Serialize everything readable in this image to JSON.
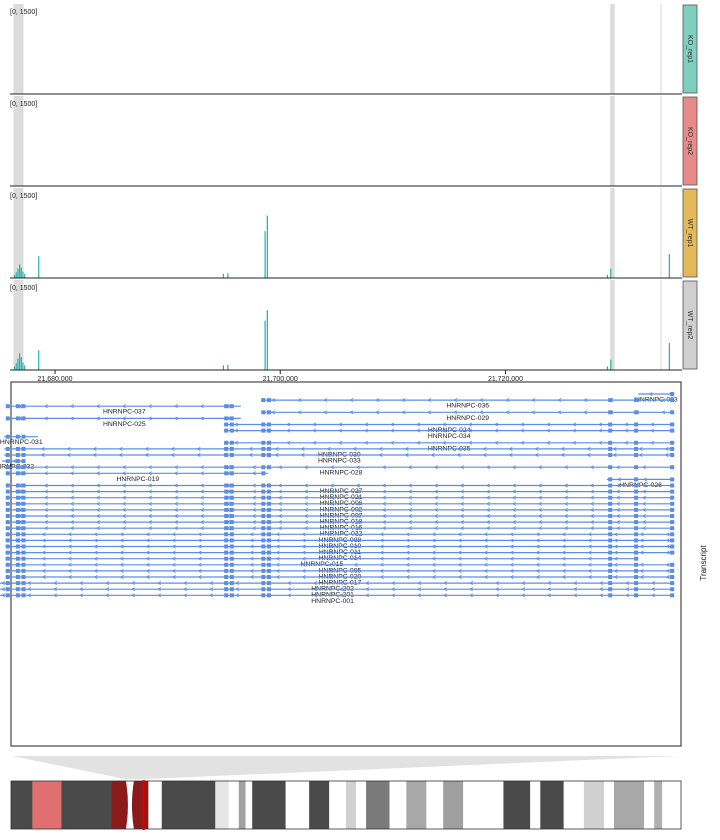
{
  "colors": {
    "coverage": "#1fb3b3",
    "highlight": "#dcdcdc",
    "transcript": "#5b8de6",
    "cytoband_dark": "#444444",
    "centromere": "#8b1a1a",
    "selected_band": "#e07070",
    "region_marker": "#dd0000"
  },
  "chart_data": {
    "type": "genome_browser_tracks",
    "x_axis": {
      "ticks": [
        "21,680,000",
        "21,700,000",
        "21,720,000"
      ],
      "tick_values": [
        21680000,
        21700000,
        21720000
      ],
      "range": [
        21676000,
        21735500
      ]
    },
    "highlight_regions": [
      [
        21676300,
        21677200
      ],
      [
        21729300,
        21729700
      ]
    ],
    "coverage_tracks": [
      {
        "label": "KO_rep1",
        "range_label": "[0, 1500]",
        "color": "#7fcfbf",
        "bars": []
      },
      {
        "label": "KO_rep2",
        "range_label": "[0, 1500]",
        "color": "#e88a8a",
        "bars": []
      },
      {
        "label": "WT_rep1",
        "range_label": "[0, 1500]",
        "color": "#e3b95a",
        "bars": [
          [
            21676350,
            60
          ],
          [
            21676500,
            110
          ],
          [
            21676650,
            180
          ],
          [
            21676800,
            260
          ],
          [
            21676950,
            200
          ],
          [
            21677100,
            120
          ],
          [
            21677250,
            80
          ],
          [
            21678500,
            420
          ],
          [
            21694900,
            80
          ],
          [
            21695300,
            90
          ],
          [
            21698600,
            900
          ],
          [
            21698800,
            1200
          ],
          [
            21729000,
            60
          ],
          [
            21729300,
            180
          ],
          [
            21734500,
            460
          ]
        ]
      },
      {
        "label": "WT_rep2",
        "range_label": "[0, 1500]",
        "color": "#cfcfcf",
        "bars": [
          [
            21676350,
            70
          ],
          [
            21676500,
            130
          ],
          [
            21676650,
            220
          ],
          [
            21676800,
            320
          ],
          [
            21676950,
            250
          ],
          [
            21677100,
            140
          ],
          [
            21677250,
            90
          ],
          [
            21678500,
            380
          ],
          [
            21694900,
            90
          ],
          [
            21695300,
            100
          ],
          [
            21698600,
            950
          ],
          [
            21698800,
            1150
          ],
          [
            21729000,
            70
          ],
          [
            21729300,
            200
          ],
          [
            21734500,
            520
          ]
        ]
      }
    ],
    "transcripts_track": {
      "title": "Transcript",
      "transcripts": [
        {
          "name": "HNRNPC-023",
          "start": 21731800,
          "end": 21735000
        },
        {
          "name": "HNRNPC-036",
          "start": 21698300,
          "end": 21735000
        },
        {
          "name": "HNRNPC-037",
          "start": 21675800,
          "end": 21696500
        },
        {
          "name": "HNRNPC-029",
          "start": 21698300,
          "end": 21735000
        },
        {
          "name": "HNRNPC-025",
          "start": 21675800,
          "end": 21696500
        },
        {
          "name": "HNRNPC-024",
          "start": 21695000,
          "end": 21735000
        },
        {
          "name": "HNRNPC-034",
          "start": 21695000,
          "end": 21735000
        },
        {
          "name": "HNRNPC-031",
          "start": 21675500,
          "end": 21678500
        },
        {
          "name": "HNRNPC-035",
          "start": 21695000,
          "end": 21735000
        },
        {
          "name": "HNRNPC-030",
          "start": 21675500,
          "end": 21735000
        },
        {
          "name": "HNRNPC-033",
          "start": 21675500,
          "end": 21735000
        },
        {
          "name": "HNRNPC-032",
          "start": 21675300,
          "end": 21677200
        },
        {
          "name": "HNRNPC-028",
          "start": 21675800,
          "end": 21735000
        },
        {
          "name": "HNRNPC-019",
          "start": 21675800,
          "end": 21698900
        },
        {
          "name": "HNRNPC-026",
          "start": 21729000,
          "end": 21735000
        },
        {
          "name": "HNRNPC-027",
          "start": 21675800,
          "end": 21735000
        },
        {
          "name": "HNRNPC-021",
          "start": 21675800,
          "end": 21735000
        },
        {
          "name": "HNRNPC-006",
          "start": 21675800,
          "end": 21735000
        },
        {
          "name": "HNRNPC-002",
          "start": 21675800,
          "end": 21735000
        },
        {
          "name": "HNRNPC-007",
          "start": 21675800,
          "end": 21735000
        },
        {
          "name": "HNRNPC-018",
          "start": 21675800,
          "end": 21735000
        },
        {
          "name": "HNRNPC-016",
          "start": 21675800,
          "end": 21735000
        },
        {
          "name": "HNRNPC-022",
          "start": 21675800,
          "end": 21735000
        },
        {
          "name": "HNRNPC-008",
          "start": 21675600,
          "end": 21735000
        },
        {
          "name": "HNRNPC-010",
          "start": 21675600,
          "end": 21735000
        },
        {
          "name": "HNRNPC-011",
          "start": 21675600,
          "end": 21735000
        },
        {
          "name": "HNRNPC-014",
          "start": 21675600,
          "end": 21735000
        },
        {
          "name": "HNRNPC-015",
          "start": 21675600,
          "end": 21731800
        },
        {
          "name": "HNRNPC-005",
          "start": 21675600,
          "end": 21735000
        },
        {
          "name": "HNRNPC-020",
          "start": 21675600,
          "end": 21735000
        },
        {
          "name": "HNRNPC-017",
          "start": 21675600,
          "end": 21735000
        },
        {
          "name": "HNRNPC-202",
          "start": 21674300,
          "end": 21735000
        },
        {
          "name": "HNRNPC-201",
          "start": 21674300,
          "end": 21735000
        },
        {
          "name": "HNRNPC-001",
          "start": 21674300,
          "end": 21735000
        }
      ]
    },
    "ideogram": {
      "bands": [
        {
          "color": "#4a4a4a",
          "from": 0.0,
          "to": 0.032
        },
        {
          "color": "#e07070",
          "from": 0.032,
          "to": 0.075
        },
        {
          "color": "#4a4a4a",
          "from": 0.075,
          "to": 0.15
        },
        {
          "color": "#ffffff",
          "from": 0.205,
          "to": 0.225
        },
        {
          "color": "#4a4a4a",
          "from": 0.225,
          "to": 0.305
        },
        {
          "color": "#e6e6e6",
          "from": 0.305,
          "to": 0.325
        },
        {
          "color": "#ffffff",
          "from": 0.325,
          "to": 0.34
        },
        {
          "color": "#a0a0a0",
          "from": 0.34,
          "to": 0.35
        },
        {
          "color": "#ffffff",
          "from": 0.35,
          "to": 0.36
        },
        {
          "color": "#4a4a4a",
          "from": 0.36,
          "to": 0.41
        },
        {
          "color": "#ffffff",
          "from": 0.41,
          "to": 0.445
        },
        {
          "color": "#4a4a4a",
          "from": 0.445,
          "to": 0.475
        },
        {
          "color": "#ffffff",
          "from": 0.475,
          "to": 0.5
        },
        {
          "color": "#d0d0d0",
          "from": 0.5,
          "to": 0.515
        },
        {
          "color": "#ffffff",
          "from": 0.515,
          "to": 0.53
        },
        {
          "color": "#7a7a7a",
          "from": 0.53,
          "to": 0.565
        },
        {
          "color": "#ffffff",
          "from": 0.565,
          "to": 0.59
        },
        {
          "color": "#a8a8a8",
          "from": 0.59,
          "to": 0.62
        },
        {
          "color": "#ffffff",
          "from": 0.62,
          "to": 0.645
        },
        {
          "color": "#a0a0a0",
          "from": 0.645,
          "to": 0.675
        },
        {
          "color": "#ffffff",
          "from": 0.675,
          "to": 0.735
        },
        {
          "color": "#4a4a4a",
          "from": 0.735,
          "to": 0.775
        },
        {
          "color": "#ffffff",
          "from": 0.775,
          "to": 0.79
        },
        {
          "color": "#4a4a4a",
          "from": 0.79,
          "to": 0.825
        },
        {
          "color": "#ffffff",
          "from": 0.825,
          "to": 0.855
        },
        {
          "color": "#d0d0d0",
          "from": 0.855,
          "to": 0.885
        },
        {
          "color": "#ffffff",
          "from": 0.885,
          "to": 0.9
        },
        {
          "color": "#a8a8a8",
          "from": 0.9,
          "to": 0.945
        },
        {
          "color": "#ffffff",
          "from": 0.945,
          "to": 0.96
        },
        {
          "color": "#b0b0b0",
          "from": 0.96,
          "to": 0.972
        },
        {
          "color": "#ffffff",
          "from": 0.972,
          "to": 1.0
        }
      ],
      "centromere": [
        0.15,
        0.205
      ],
      "region_marker": 0.198
    }
  }
}
